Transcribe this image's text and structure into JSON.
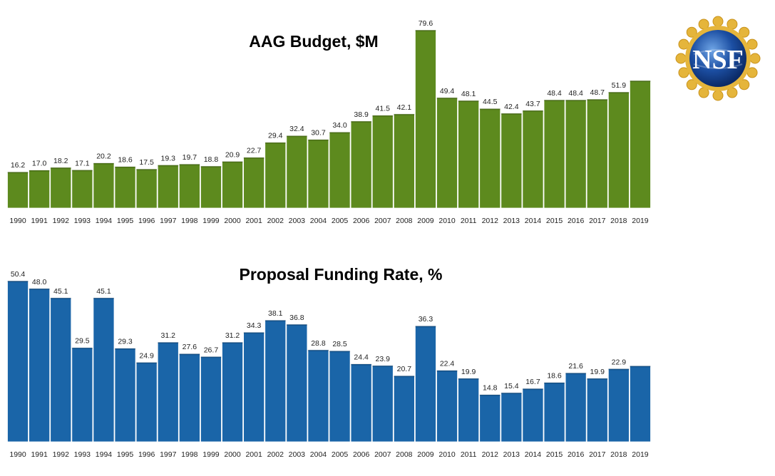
{
  "logo": {
    "text": "NSF",
    "colors": {
      "ring": "#e5b53b",
      "globe": "#1c4fa3"
    }
  },
  "chart_data": [
    {
      "type": "bar",
      "title": "AAG Budget, $M",
      "categories": [
        "1990",
        "1991",
        "1992",
        "1993",
        "1994",
        "1995",
        "1996",
        "1997",
        "1998",
        "1999",
        "2000",
        "2001",
        "2002",
        "2003",
        "2004",
        "2005",
        "2006",
        "2007",
        "2008",
        "2009",
        "2010",
        "2011",
        "2012",
        "2013",
        "2014",
        "2015",
        "2016",
        "2017",
        "2018",
        "2019"
      ],
      "values": [
        16.2,
        17.0,
        18.2,
        17.1,
        20.2,
        18.6,
        17.5,
        19.3,
        19.7,
        18.8,
        20.9,
        22.7,
        29.4,
        32.4,
        30.7,
        34.0,
        38.9,
        41.5,
        42.1,
        79.6,
        49.4,
        48.1,
        44.5,
        42.4,
        43.7,
        48.4,
        48.4,
        48.7,
        51.9,
        57.0
      ],
      "labels": [
        "16.2",
        "17.0",
        "18.2",
        "17.1",
        "20.2",
        "18.6",
        "17.5",
        "19.3",
        "19.7",
        "18.8",
        "20.9",
        "22.7",
        "29.4",
        "32.4",
        "30.7",
        "34.0",
        "38.9",
        "41.5",
        "42.1",
        "79.6",
        "49.4",
        "48.1",
        "44.5",
        "42.4",
        "43.7",
        "48.4",
        "48.4",
        "48.7",
        "51.9",
        ""
      ],
      "ylim": [
        0,
        79.6
      ],
      "color": "#5d8a1e",
      "grid": false
    },
    {
      "type": "bar",
      "title": "Proposal Funding Rate, %",
      "categories": [
        "1990",
        "1991",
        "1992",
        "1993",
        "1994",
        "1995",
        "1996",
        "1997",
        "1998",
        "1999",
        "2000",
        "2001",
        "2002",
        "2003",
        "2004",
        "2005",
        "2006",
        "2007",
        "2008",
        "2009",
        "2010",
        "2011",
        "2012",
        "2013",
        "2014",
        "2015",
        "2016",
        "2017",
        "2018",
        "2019"
      ],
      "values": [
        50.4,
        48.0,
        45.1,
        29.5,
        45.1,
        29.3,
        24.9,
        31.2,
        27.6,
        26.7,
        31.2,
        34.3,
        38.1,
        36.8,
        28.8,
        28.5,
        24.4,
        23.9,
        20.7,
        36.3,
        22.4,
        19.9,
        14.8,
        15.4,
        16.7,
        18.6,
        21.6,
        19.9,
        22.9,
        23.8
      ],
      "labels": [
        "50.4",
        "48.0",
        "45.1",
        "29.5",
        "45.1",
        "29.3",
        "24.9",
        "31.2",
        "27.6",
        "26.7",
        "31.2",
        "34.3",
        "38.1",
        "36.8",
        "28.8",
        "28.5",
        "24.4",
        "23.9",
        "20.7",
        "36.3",
        "22.4",
        "19.9",
        "14.8",
        "15.4",
        "16.7",
        "18.6",
        "21.6",
        "19.9",
        "22.9",
        ""
      ],
      "ylim": [
        0,
        50.4
      ],
      "color": "#1a65a8",
      "grid": false
    }
  ]
}
